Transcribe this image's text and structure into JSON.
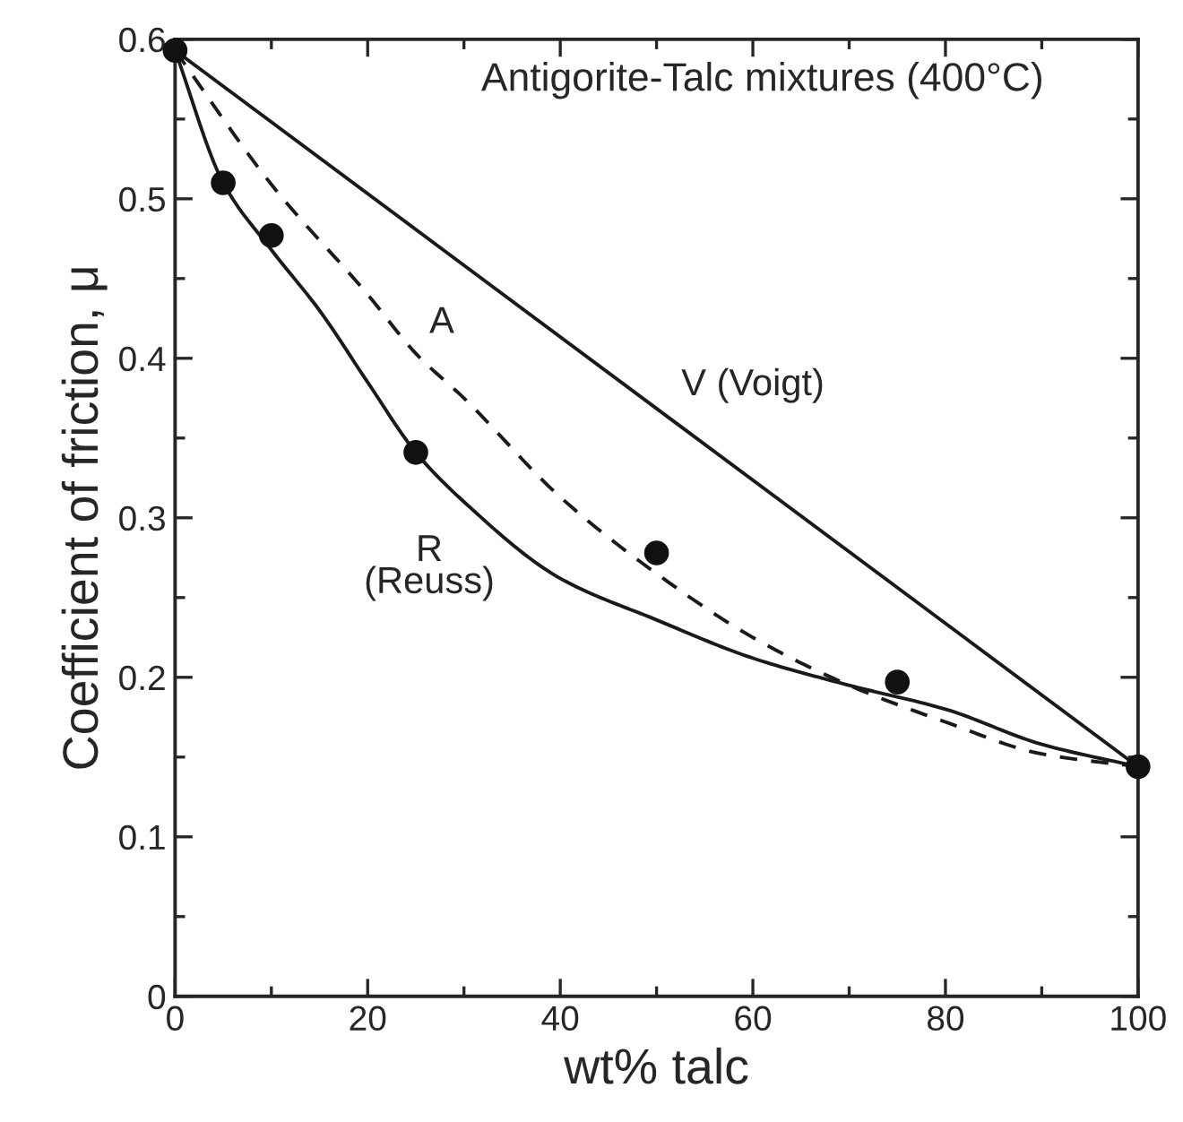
{
  "chart_data": {
    "type": "line",
    "title": "Antigorite-Talc mixtures (400°C)",
    "xlabel": "wt% talc",
    "ylabel": "Coefficient of friction, μ",
    "xlim": [
      0,
      100
    ],
    "ylim": [
      0,
      0.6
    ],
    "xticks": [
      0,
      {
        "value": 10,
        "label": null
      },
      20,
      {
        "value": 30,
        "label": null
      },
      40,
      {
        "value": 50,
        "label": null
      },
      60,
      {
        "value": 70,
        "label": null
      },
      80,
      {
        "value": 90,
        "label": null
      },
      100
    ],
    "yticks": [
      0,
      {
        "value": 0.05,
        "label": null
      },
      {
        "value": 0.1,
        "label": "0.1"
      },
      {
        "value": 0.15,
        "label": null
      },
      {
        "value": 0.2,
        "label": "0.2"
      },
      {
        "value": 0.25,
        "label": null
      },
      {
        "value": 0.3,
        "label": "0.3"
      },
      {
        "value": 0.35,
        "label": null
      },
      {
        "value": 0.4,
        "label": "0.4"
      },
      {
        "value": 0.45,
        "label": null
      },
      {
        "value": 0.5,
        "label": "0.5"
      },
      {
        "value": 0.55,
        "label": null
      },
      {
        "value": 0.6,
        "label": "0.6"
      }
    ],
    "grid": false,
    "legend": false,
    "series": [
      {
        "name": "V (Voigt)",
        "color": "#1a1a1a",
        "line_style": "solid",
        "marker": "none",
        "x": [
          0,
          100
        ],
        "values": [
          0.593,
          0.144
        ]
      },
      {
        "name": "A",
        "color": "#1a1a1a",
        "line_style": "dashed",
        "marker": "none",
        "x": [
          0,
          10,
          20,
          25,
          30,
          40,
          50,
          60,
          70,
          80,
          90,
          100
        ],
        "values": [
          0.593,
          0.509,
          0.44,
          0.403,
          0.375,
          0.313,
          0.265,
          0.225,
          0.195,
          0.172,
          0.152,
          0.144
        ]
      },
      {
        "name": "R\n(Reuss)",
        "color": "#1a1a1a",
        "line_style": "solid",
        "marker": "none",
        "x": [
          0,
          5,
          10,
          15,
          20,
          25,
          30,
          40,
          50,
          60,
          70,
          80,
          90,
          100
        ],
        "values": [
          0.593,
          0.51,
          0.468,
          0.43,
          0.385,
          0.341,
          0.31,
          0.262,
          0.236,
          0.212,
          0.195,
          0.18,
          0.158,
          0.144
        ]
      },
      {
        "type": "scatter",
        "color": "#111111",
        "marker": "circle",
        "x": [
          0,
          5,
          10,
          25,
          50,
          75,
          100
        ],
        "values": [
          0.593,
          0.51,
          0.477,
          0.341,
          0.278,
          0.197,
          0.144
        ]
      }
    ]
  }
}
